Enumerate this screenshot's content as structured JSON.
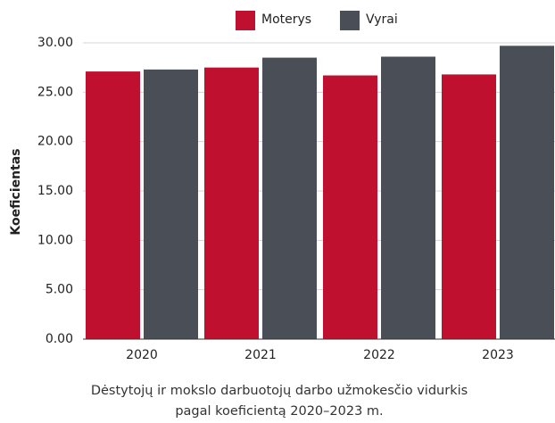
{
  "chart_data": {
    "type": "bar",
    "y_label": "Koeficientas",
    "caption": [
      "Dėstytojų ir mokslo darbuotojų darbo užmokesčio vidurkis",
      "pagal koeficientą 2020–2023 m."
    ],
    "categories": [
      "2020",
      "2021",
      "2022",
      "2023"
    ],
    "series": [
      {
        "name": "Moterys",
        "color": "#c0102f",
        "values": [
          27.1,
          27.5,
          26.7,
          26.8
        ]
      },
      {
        "name": "Vyrai",
        "color": "#4a4f57",
        "values": [
          27.3,
          28.5,
          28.6,
          29.7
        ]
      }
    ],
    "ylim": [
      0,
      30
    ],
    "yticks": [
      {
        "value": 0,
        "label": "0.00"
      },
      {
        "value": 5,
        "label": "5.00"
      },
      {
        "value": 10,
        "label": "10.00"
      },
      {
        "value": 15,
        "label": "15.00"
      },
      {
        "value": 20,
        "label": "20.00"
      },
      {
        "value": 25,
        "label": "25.00"
      },
      {
        "value": 30,
        "label": "30.00"
      }
    ],
    "grid": true
  }
}
